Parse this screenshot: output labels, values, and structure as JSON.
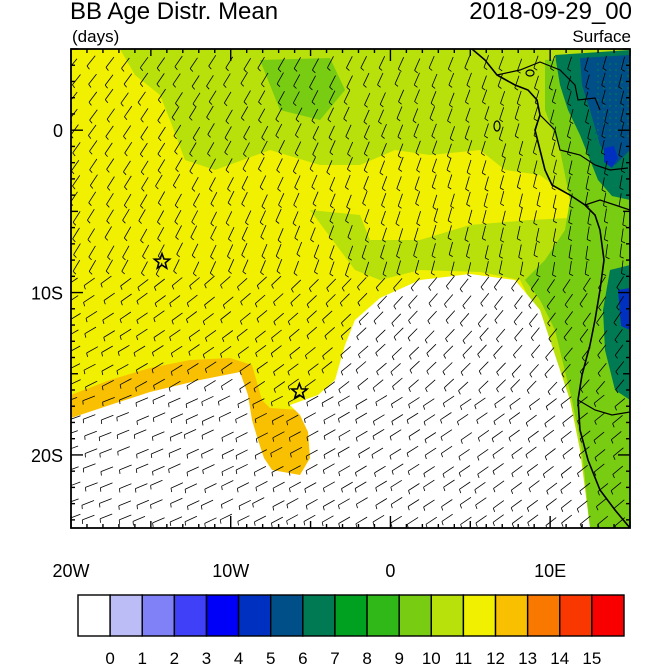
{
  "header": {
    "title": "BB Age Distr. Mean",
    "units": "(days)",
    "date": "2018-09-29_00",
    "level": "Surface"
  },
  "axes": {
    "lon_labels": [
      "20W",
      "10W",
      "0",
      "10E"
    ],
    "lon_values": [
      -20,
      -10,
      0,
      10
    ],
    "lat_labels": [
      "0",
      "10S",
      "20S"
    ],
    "lat_values": [
      0,
      -10,
      -20
    ],
    "lon_range": [
      -20,
      15
    ],
    "lat_range": [
      -24.5,
      5
    ]
  },
  "markers": [
    {
      "name": "star",
      "lon": -14.3,
      "lat": -8.1
    },
    {
      "name": "star",
      "lon": -5.7,
      "lat": -16.1
    }
  ],
  "colorbar": {
    "labels": [
      "0",
      "1",
      "2",
      "3",
      "4",
      "5",
      "6",
      "7",
      "8",
      "9",
      "10",
      "11",
      "12",
      "13",
      "14",
      "15"
    ],
    "colors": [
      "#ffffff",
      "#bcbcf6",
      "#8080f7",
      "#4040f8",
      "#0000f8",
      "#0030c0",
      "#004f88",
      "#007a52",
      "#00a020",
      "#30b818",
      "#78cc12",
      "#b8e00a",
      "#f0f000",
      "#f8c000",
      "#f87800",
      "#f83800",
      "#f80000"
    ]
  },
  "colors": {
    "ocean_yellow": "#f0f000",
    "light_green": "#b8e00a",
    "green": "#78cc12",
    "orange": "#f8c000",
    "white": "#ffffff",
    "dark_green": "#007a52",
    "teal": "#004f88",
    "blue": "#0030c0"
  }
}
